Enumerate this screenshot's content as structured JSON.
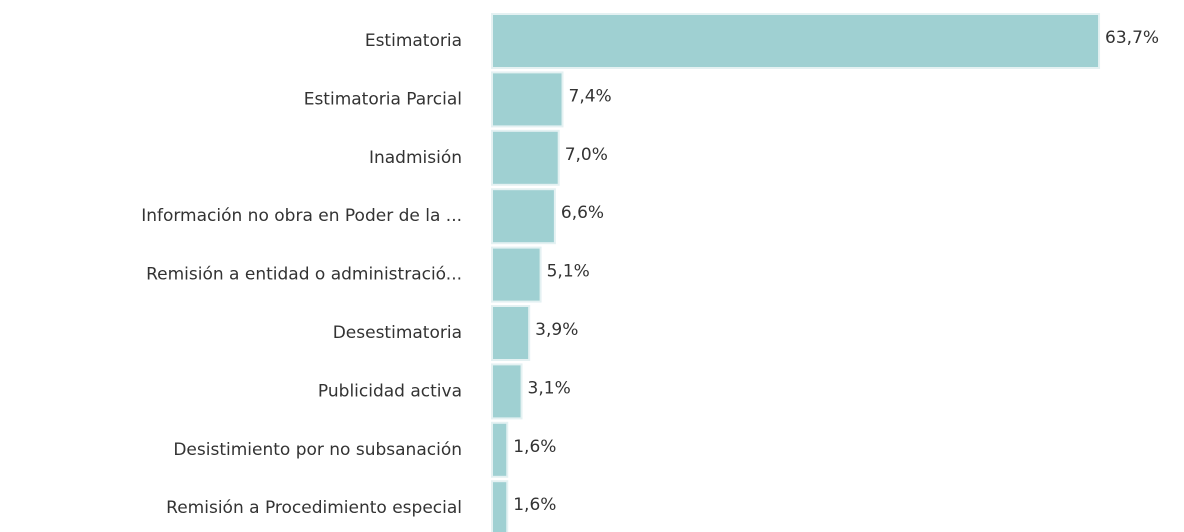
{
  "chart_data": {
    "type": "bar",
    "orientation": "horizontal",
    "categories": [
      "Estimatoria",
      "Estimatoria Parcial",
      "Inadmisión",
      "Información no obra en Poder de la ...",
      "Remisión a entidad o administració...",
      "Desestimatoria",
      "Publicidad activa",
      "Desistimiento por no subsanación",
      "Remisión a Procedimiento especial"
    ],
    "values": [
      63.7,
      7.4,
      7.0,
      6.6,
      5.1,
      3.9,
      3.1,
      1.6,
      1.6
    ],
    "value_labels": [
      "63,7%",
      "7,4%",
      "7,0%",
      "6,6%",
      "5,1%",
      "3,9%",
      "3,1%",
      "1,6%",
      "1,6%"
    ],
    "color": "#9fd0d2"
  }
}
